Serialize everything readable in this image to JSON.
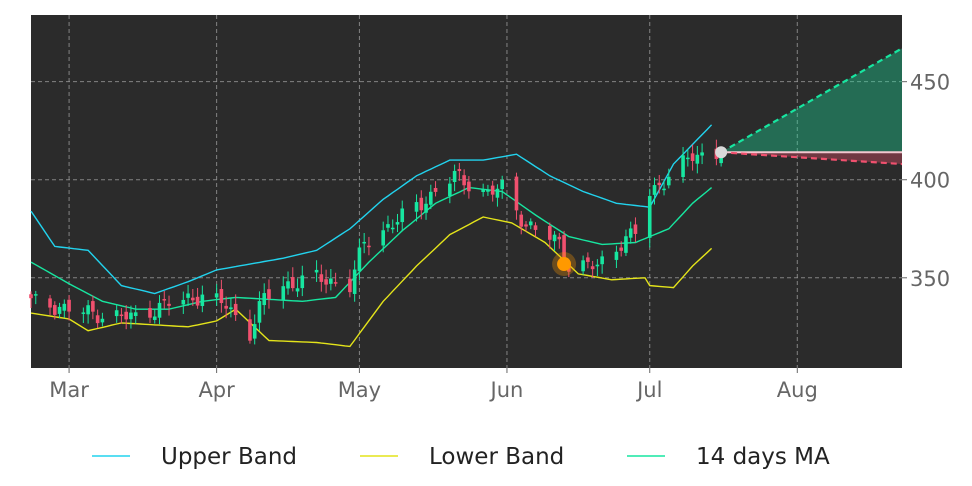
{
  "chart_data": {
    "type": "candlestick",
    "background": "#2b2b2b",
    "colors": {
      "up": "#17e6a0",
      "down": "#f0506e",
      "upper_band": "#22d3ee",
      "lower_band": "#e4e41a",
      "ma14": "#17e6a0",
      "projection_up": "#17e6a0",
      "projection_down": "#f0506e",
      "marker_last": "#d9d9d9",
      "marker_signal": "#ff9900"
    },
    "x_axis": {
      "start": "2024-02-22",
      "end": "2024-08-23",
      "ticks": [
        {
          "date": "2024-03-01",
          "label": "Mar"
        },
        {
          "date": "2024-04-01",
          "label": "Apr"
        },
        {
          "date": "2024-05-01",
          "label": "May"
        },
        {
          "date": "2024-06-01",
          "label": "Jun"
        },
        {
          "date": "2024-07-01",
          "label": "Jul"
        },
        {
          "date": "2024-08-01",
          "label": "Aug"
        }
      ]
    },
    "y_axis": {
      "range": [
        304,
        484
      ],
      "ticks": [
        350,
        400,
        450
      ],
      "position": "right"
    },
    "grid": true,
    "legend": {
      "position": "bottom",
      "entries": [
        {
          "key": "upper_band",
          "label": "Upper Band"
        },
        {
          "key": "lower_band",
          "label": "Lower Band"
        },
        {
          "key": "ma14",
          "label": "14 days MA"
        }
      ]
    },
    "close_anchors": [
      [
        "2024-02-22",
        338
      ],
      [
        "2024-03-01",
        334
      ],
      [
        "2024-03-08",
        331
      ],
      [
        "2024-03-15",
        330
      ],
      [
        "2024-03-22",
        337
      ],
      [
        "2024-03-29",
        341
      ],
      [
        "2024-04-03",
        336
      ],
      [
        "2024-04-08",
        322
      ],
      [
        "2024-04-11",
        340
      ],
      [
        "2024-04-15",
        346
      ],
      [
        "2024-04-22",
        350
      ],
      [
        "2024-04-29",
        346
      ],
      [
        "2024-05-02",
        368
      ],
      [
        "2024-05-07",
        376
      ],
      [
        "2024-05-14",
        388
      ],
      [
        "2024-05-21",
        402
      ],
      [
        "2024-05-28",
        393
      ],
      [
        "2024-05-31",
        396
      ],
      [
        "2024-06-05",
        377
      ],
      [
        "2024-06-12",
        368
      ],
      [
        "2024-06-14",
        356
      ],
      [
        "2024-06-20",
        356
      ],
      [
        "2024-06-25",
        368
      ],
      [
        "2024-06-28",
        373
      ],
      [
        "2024-07-01",
        393
      ],
      [
        "2024-07-05",
        402
      ],
      [
        "2024-07-10",
        412
      ],
      [
        "2024-07-16",
        414
      ]
    ],
    "upper_band": [
      [
        "2024-02-22",
        384
      ],
      [
        "2024-02-27",
        366
      ],
      [
        "2024-03-05",
        364
      ],
      [
        "2024-03-12",
        346
      ],
      [
        "2024-03-19",
        342
      ],
      [
        "2024-03-26",
        348
      ],
      [
        "2024-04-01",
        354
      ],
      [
        "2024-04-08",
        357
      ],
      [
        "2024-04-15",
        360
      ],
      [
        "2024-04-22",
        364
      ],
      [
        "2024-04-29",
        375
      ],
      [
        "2024-05-06",
        390
      ],
      [
        "2024-05-13",
        402
      ],
      [
        "2024-05-20",
        410
      ],
      [
        "2024-05-27",
        410
      ],
      [
        "2024-06-03",
        413
      ],
      [
        "2024-06-10",
        402
      ],
      [
        "2024-06-17",
        394
      ],
      [
        "2024-06-24",
        388
      ],
      [
        "2024-07-01",
        386
      ],
      [
        "2024-07-06",
        408
      ],
      [
        "2024-07-14",
        428
      ]
    ],
    "lower_band": [
      [
        "2024-02-22",
        332
      ],
      [
        "2024-03-01",
        329
      ],
      [
        "2024-03-05",
        323
      ],
      [
        "2024-03-12",
        327
      ],
      [
        "2024-03-19",
        326
      ],
      [
        "2024-03-26",
        325
      ],
      [
        "2024-04-01",
        328
      ],
      [
        "2024-04-05",
        334
      ],
      [
        "2024-04-12",
        318
      ],
      [
        "2024-04-22",
        317
      ],
      [
        "2024-04-29",
        315
      ],
      [
        "2024-05-06",
        338
      ],
      [
        "2024-05-13",
        356
      ],
      [
        "2024-05-20",
        372
      ],
      [
        "2024-05-27",
        381
      ],
      [
        "2024-06-02",
        378
      ],
      [
        "2024-06-09",
        368
      ],
      [
        "2024-06-16",
        352
      ],
      [
        "2024-06-23",
        349
      ],
      [
        "2024-06-30",
        350
      ],
      [
        "2024-07-01",
        346
      ],
      [
        "2024-07-06",
        345
      ],
      [
        "2024-07-10",
        356
      ],
      [
        "2024-07-14",
        365
      ]
    ],
    "ma14": [
      [
        "2024-02-22",
        358
      ],
      [
        "2024-03-01",
        347
      ],
      [
        "2024-03-08",
        338
      ],
      [
        "2024-03-15",
        334
      ],
      [
        "2024-03-22",
        334
      ],
      [
        "2024-03-29",
        338
      ],
      [
        "2024-04-05",
        340
      ],
      [
        "2024-04-12",
        339
      ],
      [
        "2024-04-19",
        338
      ],
      [
        "2024-04-26",
        340
      ],
      [
        "2024-05-03",
        358
      ],
      [
        "2024-05-10",
        374
      ],
      [
        "2024-05-17",
        388
      ],
      [
        "2024-05-24",
        396
      ],
      [
        "2024-05-31",
        394
      ],
      [
        "2024-06-07",
        382
      ],
      [
        "2024-06-14",
        371
      ],
      [
        "2024-06-21",
        367
      ],
      [
        "2024-06-28",
        368
      ],
      [
        "2024-07-05",
        375
      ],
      [
        "2024-07-10",
        388
      ],
      [
        "2024-07-14",
        396
      ]
    ],
    "projection": {
      "start": [
        "2024-07-16",
        414
      ],
      "end_date": "2024-08-23",
      "up_end": 467,
      "down_end": 408,
      "flat": 414
    },
    "signal_marker": [
      "2024-06-13",
      357
    ]
  }
}
